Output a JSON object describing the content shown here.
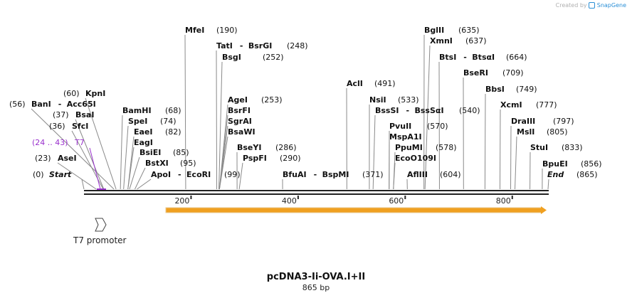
{
  "header": {
    "credit": "Created by",
    "brand": "SnapGene"
  },
  "map": {
    "title": "pcDNA3-Ii-OVA.I+II",
    "length": "865 bp",
    "length_bp": 865,
    "ticks": [
      "200",
      "400",
      "600",
      "800"
    ],
    "start_label": "Start",
    "start_pos": "(0)",
    "end_label": "End",
    "end_pos": "(865)"
  },
  "enzymes": [
    {
      "id": "asei",
      "pos": "(23)",
      "parts": [
        "AseI"
      ],
      "bp": 23
    },
    {
      "id": "sfci",
      "pos": "(36)",
      "parts": [
        "SfcI"
      ],
      "bp": 36
    },
    {
      "id": "bsai",
      "pos": "(37)",
      "parts": [
        "BsaI"
      ],
      "bp": 37
    },
    {
      "id": "bani",
      "pos": "(56)",
      "parts": [
        "BanI",
        "Acc65I"
      ],
      "bp": 56
    },
    {
      "id": "kpni",
      "pos": "(60)",
      "parts": [
        "KpnI"
      ],
      "bp": 60
    },
    {
      "id": "bamhi",
      "pos": "(68)",
      "parts": [
        "BamHI"
      ],
      "bp": 68
    },
    {
      "id": "spei",
      "pos": "(74)",
      "parts": [
        "SpeI"
      ],
      "bp": 74
    },
    {
      "id": "eaei",
      "pos": "(82)",
      "parts": [
        "EaeI"
      ],
      "bp": 82
    },
    {
      "id": "eagi",
      "pos": "",
      "parts": [
        "EagI"
      ],
      "bp": 82
    },
    {
      "id": "bsiei",
      "pos": "(85)",
      "parts": [
        "BsiEI"
      ],
      "bp": 85
    },
    {
      "id": "bstxi",
      "pos": "(95)",
      "parts": [
        "BstXI"
      ],
      "bp": 95
    },
    {
      "id": "apoi",
      "pos": "(99)",
      "parts": [
        "ApoI",
        "EcoRI"
      ],
      "bp": 99
    },
    {
      "id": "mfei",
      "pos": "(190)",
      "parts": [
        "MfeI"
      ],
      "bp": 190
    },
    {
      "id": "tati",
      "pos": "(248)",
      "parts": [
        "TatI",
        "BsrGI"
      ],
      "bp": 248
    },
    {
      "id": "bsgi",
      "pos": "(252)",
      "parts": [
        "BsgI"
      ],
      "bp": 252
    },
    {
      "id": "agei",
      "pos": "(253)",
      "parts": [
        "AgeI"
      ],
      "bp": 253
    },
    {
      "id": "bsrfi",
      "pos": "",
      "parts": [
        "BsrFI"
      ],
      "bp": 253
    },
    {
      "id": "sgrai",
      "pos": "",
      "parts": [
        "SgrAI"
      ],
      "bp": 253
    },
    {
      "id": "bsawi",
      "pos": "",
      "parts": [
        "BsaWI"
      ],
      "bp": 253
    },
    {
      "id": "bseyi",
      "pos": "(286)",
      "parts": [
        "BseYI"
      ],
      "bp": 286
    },
    {
      "id": "pspfi",
      "pos": "(290)",
      "parts": [
        "PspFI"
      ],
      "bp": 290
    },
    {
      "id": "bfuai",
      "pos": "(371)",
      "parts": [
        "BfuAI",
        "BspMI"
      ],
      "bp": 371
    },
    {
      "id": "acli",
      "pos": "(491)",
      "parts": [
        "AclI"
      ],
      "bp": 491
    },
    {
      "id": "nsii",
      "pos": "(533)",
      "parts": [
        "NsiI"
      ],
      "bp": 533
    },
    {
      "id": "bsssi",
      "pos": "(540)",
      "parts": [
        "BssSI",
        "BssSαI"
      ],
      "bp": 540
    },
    {
      "id": "pvuii",
      "pos": "(570)",
      "parts": [
        "PvuII"
      ],
      "bp": 570
    },
    {
      "id": "mspa1i",
      "pos": "",
      "parts": [
        "MspA1I"
      ],
      "bp": 570
    },
    {
      "id": "ppumi",
      "pos": "(578)",
      "parts": [
        "PpuMI"
      ],
      "bp": 578
    },
    {
      "id": "eco0109i",
      "pos": "",
      "parts": [
        "EcoO109I"
      ],
      "bp": 578
    },
    {
      "id": "afliii",
      "pos": "(604)",
      "parts": [
        "AflIII"
      ],
      "bp": 604
    },
    {
      "id": "bglii",
      "pos": "(635)",
      "parts": [
        "BglII"
      ],
      "bp": 635
    },
    {
      "id": "xmni",
      "pos": "(637)",
      "parts": [
        "XmnI"
      ],
      "bp": 637
    },
    {
      "id": "btsi",
      "pos": "(664)",
      "parts": [
        "BtsI",
        "BtsαI"
      ],
      "bp": 664
    },
    {
      "id": "bseri",
      "pos": "(709)",
      "parts": [
        "BseRI"
      ],
      "bp": 709
    },
    {
      "id": "bbsi",
      "pos": "(749)",
      "parts": [
        "BbsI"
      ],
      "bp": 749
    },
    {
      "id": "xcmi",
      "pos": "(777)",
      "parts": [
        "XcmI"
      ],
      "bp": 777
    },
    {
      "id": "draiii",
      "pos": "(797)",
      "parts": [
        "DraIII"
      ],
      "bp": 797
    },
    {
      "id": "msli",
      "pos": "(805)",
      "parts": [
        "MslI"
      ],
      "bp": 805
    },
    {
      "id": "stui",
      "pos": "(833)",
      "parts": [
        "StuI"
      ],
      "bp": 833
    },
    {
      "id": "bpuei",
      "pos": "(856)",
      "parts": [
        "BpuEI"
      ],
      "bp": 856
    }
  ],
  "features": {
    "t7": {
      "label": "T7",
      "pos": "(24 .. 43)",
      "color": "#9a32cd",
      "start_bp": 24,
      "end_bp": 43
    },
    "t7_promoter": {
      "label": "T7 promoter"
    },
    "orf": {
      "color": "#f0a020",
      "start_bp": 153,
      "end_bp": 865
    }
  },
  "colors": {
    "backbone": "#222222",
    "leader": "#8a8a8a",
    "brand": "#2a8fd6"
  }
}
